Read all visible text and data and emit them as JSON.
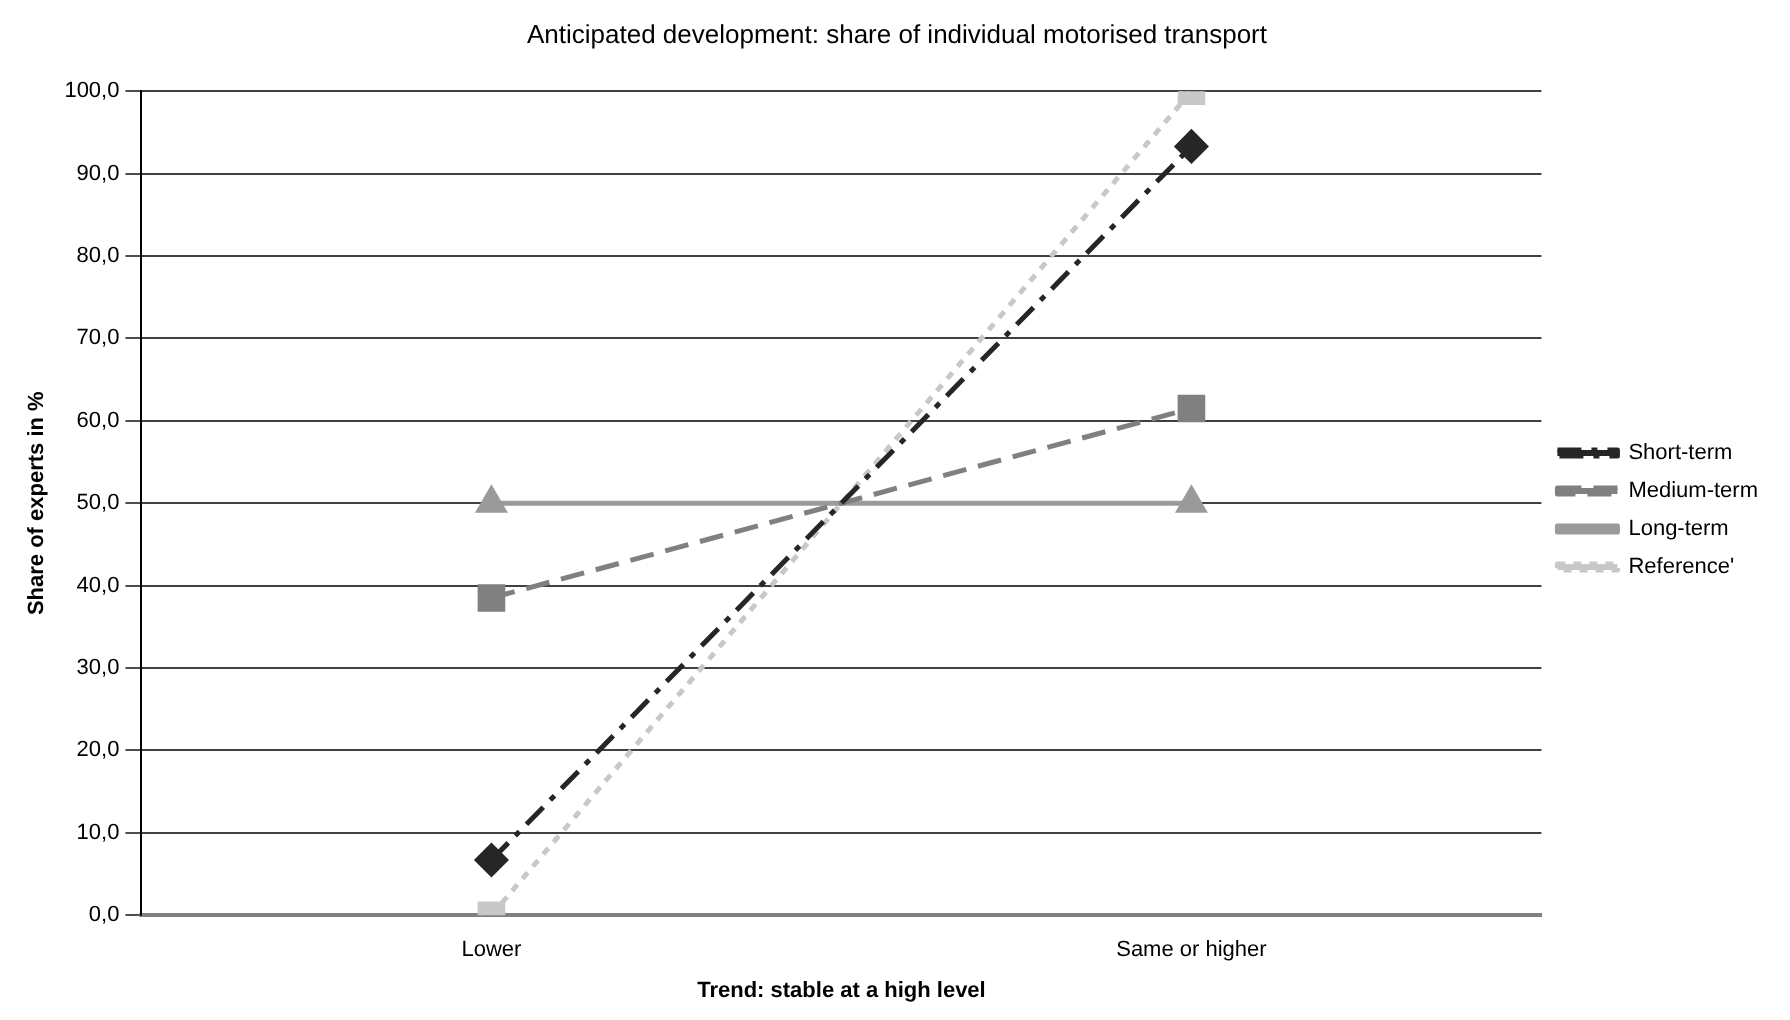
{
  "chart_data": {
    "type": "line",
    "title": "Anticipated development: share of individual motorised transport",
    "xlabel": "Trend: stable at a high level",
    "ylabel": "Share of experts in %",
    "categories": [
      "Lower",
      "Same or higher"
    ],
    "series": [
      {
        "name": "Short-term",
        "color": "#262626",
        "values": [
          6.7,
          93.3
        ],
        "marker": "diamond",
        "line_style": "dashdot"
      },
      {
        "name": "Medium-term",
        "color": "#808080",
        "values": [
          38.5,
          61.5
        ],
        "marker": "square",
        "line_style": "dashed"
      },
      {
        "name": "Long-term",
        "color": "#9a9a9a",
        "values": [
          50,
          50
        ],
        "marker": "triangle",
        "line_style": "solid"
      },
      {
        "name": "Reference'",
        "color": "#c8c8c8",
        "values": [
          0,
          100
        ],
        "marker": "square",
        "line_style": "dotted"
      }
    ],
    "ylim": [
      0,
      100
    ],
    "yticks": [
      {
        "value": 0,
        "label": "0,0"
      },
      {
        "value": 10,
        "label": "10,0"
      },
      {
        "value": 20,
        "label": "20,0"
      },
      {
        "value": 30,
        "label": "30,0"
      },
      {
        "value": 40,
        "label": "40,0"
      },
      {
        "value": 50,
        "label": "50,0"
      },
      {
        "value": 60,
        "label": "60,0"
      },
      {
        "value": 70,
        "label": "70,0"
      },
      {
        "value": 80,
        "label": "80,0"
      },
      {
        "value": 90,
        "label": "90,0"
      },
      {
        "value": 100,
        "label": "100,0"
      }
    ],
    "grid": "y",
    "legend": "right"
  }
}
